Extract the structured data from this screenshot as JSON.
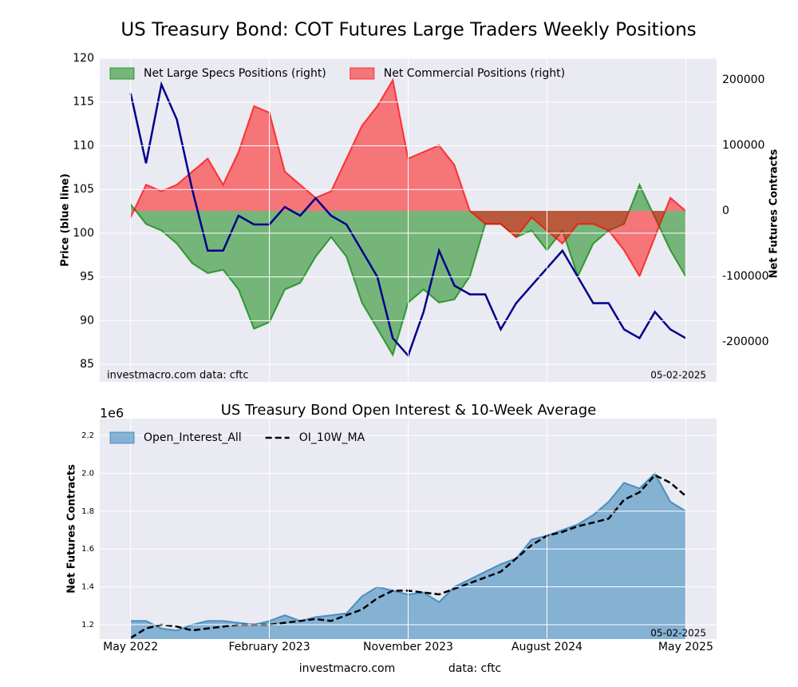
{
  "title": "US Treasury Bond: COT Futures Large Traders Weekly Positions",
  "footer": [
    "investmacro.com",
    "data: cftc"
  ],
  "chart_data": [
    {
      "type": "area",
      "ylabel": "Price (blue line)",
      "y2label": "Net Futures Contracts",
      "annotations": [
        "investmacro.com   data: cftc",
        "05-02-2025"
      ],
      "grid": true,
      "legend": "upper left",
      "x": [
        "2022-05",
        "2022-06",
        "2022-07",
        "2022-08",
        "2022-09",
        "2022-10",
        "2022-11",
        "2022-12",
        "2023-01",
        "2023-02",
        "2023-03",
        "2023-04",
        "2023-05",
        "2023-06",
        "2023-07",
        "2023-08",
        "2023-09",
        "2023-10",
        "2023-11",
        "2023-12",
        "2024-01",
        "2024-02",
        "2024-03",
        "2024-04",
        "2024-05",
        "2024-06",
        "2024-07",
        "2024-08",
        "2024-09",
        "2024-10",
        "2024-11",
        "2024-12",
        "2025-01",
        "2025-02",
        "2025-03",
        "2025-04",
        "2025-05"
      ],
      "xlim": [
        "2022-03",
        "2025-07"
      ],
      "xticks": [
        "2022-05",
        "2023-02",
        "2023-11",
        "2024-08",
        "2025-05"
      ],
      "ylim": [
        83,
        120
      ],
      "yticks": [
        85,
        90,
        95,
        100,
        105,
        110,
        115,
        120
      ],
      "y2lim": [
        -261000,
        233000
      ],
      "y2ticks": [
        -200000,
        -100000,
        0,
        100000,
        200000
      ],
      "price": {
        "color": "#00008b",
        "values": [
          116,
          108,
          117,
          113,
          105,
          98,
          98,
          102,
          101,
          101,
          103,
          102,
          104,
          102,
          101,
          98,
          95,
          88,
          86,
          91,
          98,
          94,
          93,
          93,
          89,
          92,
          94,
          96,
          98,
          95,
          92,
          92,
          89,
          88,
          91,
          89,
          88
        ]
      },
      "series": [
        {
          "name": "Net Large Specs Positions (right)",
          "color": "#008000",
          "axis": "y2",
          "values": [
            10000,
            -20000,
            -30000,
            -50000,
            -80000,
            -95000,
            -90000,
            -120000,
            -180000,
            -170000,
            -120000,
            -110000,
            -70000,
            -40000,
            -70000,
            -140000,
            -180000,
            -220000,
            -140000,
            -120000,
            -140000,
            -135000,
            -100000,
            -20000,
            -20000,
            -40000,
            -30000,
            -60000,
            -30000,
            -100000,
            -50000,
            -30000,
            -20000,
            40000,
            -10000,
            -60000,
            -100000
          ]
        },
        {
          "name": "Net Commercial Positions (right)",
          "color": "#ff0000",
          "axis": "y2",
          "values": [
            -10000,
            40000,
            30000,
            40000,
            60000,
            80000,
            40000,
            90000,
            160000,
            150000,
            60000,
            40000,
            20000,
            30000,
            80000,
            130000,
            160000,
            200000,
            80000,
            90000,
            100000,
            70000,
            0,
            -20000,
            -20000,
            -40000,
            -10000,
            -30000,
            -50000,
            -20000,
            -20000,
            -30000,
            -60000,
            -100000,
            -40000,
            20000,
            0
          ]
        }
      ]
    },
    {
      "type": "area",
      "title": "US Treasury Bond Open Interest & 10-Week Average",
      "ylabel": "Net Futures Contracts",
      "y_offset_label": "1e6",
      "annotations": [
        "05-02-2025"
      ],
      "grid": true,
      "legend": "upper left",
      "x": [
        "2022-05",
        "2022-06",
        "2022-07",
        "2022-08",
        "2022-09",
        "2022-10",
        "2022-11",
        "2022-12",
        "2023-01",
        "2023-02",
        "2023-03",
        "2023-04",
        "2023-05",
        "2023-06",
        "2023-07",
        "2023-08",
        "2023-09",
        "2023-10",
        "2023-11",
        "2023-12",
        "2024-01",
        "2024-02",
        "2024-03",
        "2024-04",
        "2024-05",
        "2024-06",
        "2024-07",
        "2024-08",
        "2024-09",
        "2024-10",
        "2024-11",
        "2024-12",
        "2025-01",
        "2025-02",
        "2025-03",
        "2025-04",
        "2025-05"
      ],
      "xlim": [
        "2022-03",
        "2025-07"
      ],
      "xticks": [
        {
          "value": "2022-05",
          "label": "May 2022"
        },
        {
          "value": "2023-02",
          "label": "February 2023"
        },
        {
          "value": "2023-11",
          "label": "November 2023"
        },
        {
          "value": "2024-08",
          "label": "August 2024"
        },
        {
          "value": "2025-05",
          "label": "May 2025"
        }
      ],
      "ylim": [
        1.124,
        2.289
      ],
      "yticks": [
        1.2,
        1.4,
        1.6,
        1.8,
        {
          "value": 2,
          "label": "2.0"
        },
        2.2
      ],
      "series": [
        {
          "name": "Open_Interest_All",
          "color": "#1f77b4",
          "fill": true,
          "values": [
            1.22,
            1.22,
            1.18,
            1.17,
            1.2,
            1.22,
            1.22,
            1.21,
            1.2,
            1.22,
            1.25,
            1.22,
            1.24,
            1.25,
            1.26,
            1.35,
            1.4,
            1.38,
            1.36,
            1.37,
            1.32,
            1.4,
            1.44,
            1.48,
            1.52,
            1.55,
            1.65,
            1.67,
            1.7,
            1.73,
            1.78,
            1.85,
            1.95,
            1.92,
            2.0,
            1.85,
            1.8
          ]
        },
        {
          "name": "OI_10W_MA",
          "color": "#000000",
          "fill": false,
          "dashed": true,
          "values": [
            1.13,
            1.18,
            1.2,
            1.19,
            1.17,
            1.18,
            1.19,
            1.2,
            1.2,
            1.2,
            1.21,
            1.22,
            1.23,
            1.22,
            1.25,
            1.28,
            1.34,
            1.38,
            1.38,
            1.37,
            1.36,
            1.39,
            1.42,
            1.45,
            1.48,
            1.55,
            1.62,
            1.67,
            1.69,
            1.72,
            1.74,
            1.76,
            1.86,
            1.9,
            1.99,
            1.95,
            1.88
          ]
        }
      ]
    }
  ]
}
